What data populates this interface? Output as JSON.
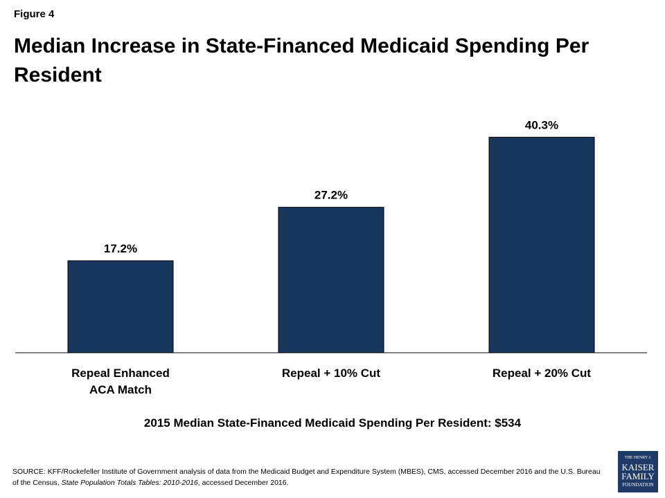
{
  "figure_label": "Figure 4",
  "chart_data": {
    "type": "bar",
    "title": "Median Increase in State-Financed Medicaid Spending Per Resident",
    "categories": [
      "Repeal Enhanced ACA Match",
      "Repeal + 10% Cut",
      "Repeal + 20% Cut"
    ],
    "values": [
      17.2,
      27.2,
      40.3
    ],
    "value_labels": [
      "17.2%",
      "27.2%",
      "40.3%"
    ],
    "color": "#17375e",
    "ylim": [
      0,
      45
    ],
    "note": "2015 Median State-Financed Medicaid Spending Per Resident: $534"
  },
  "source": {
    "text_1": "SOURCE:  KFF/Rockefeller Institute of Government  analysis of data from the  Medicaid Budget and Expenditure System (MBES), CMS, accessed December  2016 and the U.S.  Bureau of the Census,",
    "italic": "State Population Totals Tables: 2010-2016",
    "text_2": ", accessed December 2016."
  },
  "logo": [
    "THE HENRY J.",
    "KAISER",
    "FAMILY",
    "FOUNDATION"
  ]
}
